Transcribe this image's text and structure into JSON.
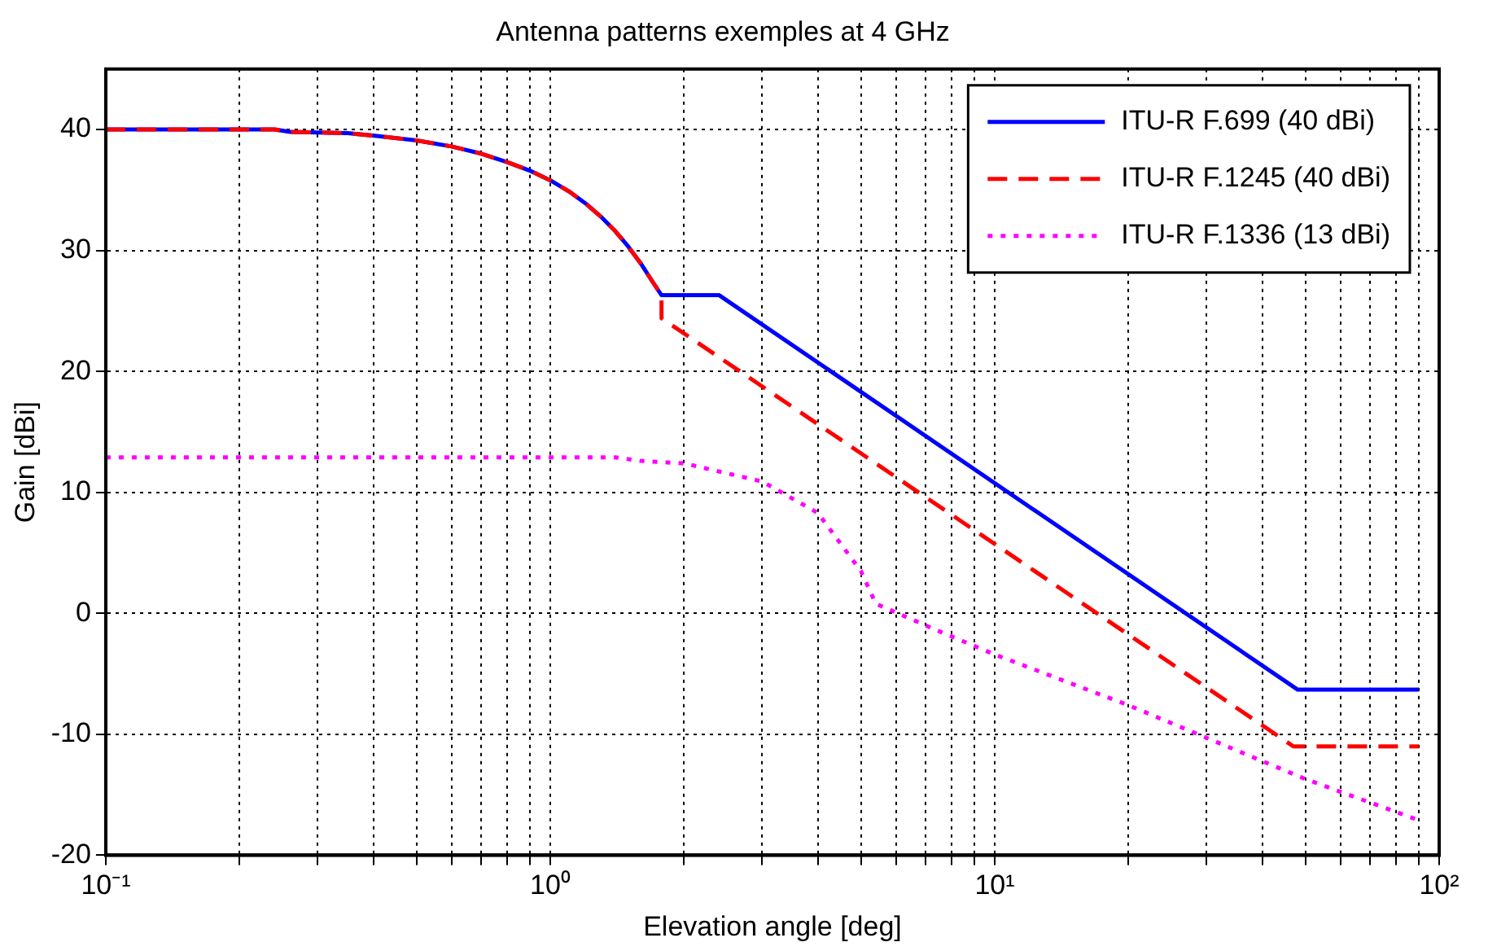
{
  "chart_data": {
    "type": "line",
    "title": "Antenna patterns exemples at 4 GHz",
    "xlabel": "Elevation angle [deg]",
    "ylabel": "Gain [dBi]",
    "log": "x",
    "grid": true,
    "legend": "top right",
    "marker": "none",
    "xlim": [
      0.1,
      100
    ],
    "ylim": [
      -20,
      45
    ],
    "xticks": [
      {
        "value": 0.1,
        "label": "10⁻¹"
      },
      {
        "value": 0.2,
        "label": null
      },
      {
        "value": 0.3,
        "label": null
      },
      {
        "value": 0.4,
        "label": null
      },
      {
        "value": 0.5,
        "label": null
      },
      {
        "value": 0.6,
        "label": null
      },
      {
        "value": 0.7,
        "label": null
      },
      {
        "value": 0.8,
        "label": null
      },
      {
        "value": 0.9,
        "label": null
      },
      {
        "value": 1,
        "label": "10⁰"
      },
      {
        "value": 2,
        "label": null
      },
      {
        "value": 3,
        "label": null
      },
      {
        "value": 4,
        "label": null
      },
      {
        "value": 5,
        "label": null
      },
      {
        "value": 6,
        "label": null
      },
      {
        "value": 7,
        "label": null
      },
      {
        "value": 8,
        "label": null
      },
      {
        "value": 9,
        "label": null
      },
      {
        "value": 10,
        "label": "10¹"
      },
      {
        "value": 20,
        "label": null
      },
      {
        "value": 30,
        "label": null
      },
      {
        "value": 40,
        "label": null
      },
      {
        "value": 50,
        "label": null
      },
      {
        "value": 60,
        "label": null
      },
      {
        "value": 70,
        "label": null
      },
      {
        "value": 80,
        "label": null
      },
      {
        "value": 90,
        "label": null
      },
      {
        "value": 100,
        "label": "10²"
      }
    ],
    "yticks": [
      -20,
      -10,
      0,
      10,
      20,
      30,
      40
    ],
    "series": [
      {
        "name": "ITU-R F.699 (40 dBi)",
        "color": "#0000ff",
        "line_style": "solid",
        "x": [
          0.1,
          0.24,
          0.26,
          0.35,
          0.4,
          0.5,
          0.6,
          0.7,
          0.8,
          0.9,
          1.0,
          1.1,
          1.2,
          1.3,
          1.4,
          1.5,
          1.6,
          1.7,
          1.78,
          2.4,
          48,
          90
        ],
        "values": [
          40,
          40,
          39.8,
          39.7,
          39.5,
          39.1,
          38.6,
          38,
          37.3,
          36.6,
          35.8,
          34.9,
          33.9,
          32.8,
          31.6,
          30.3,
          28.9,
          27.4,
          26.3,
          26.3,
          -6.3,
          -6.3
        ]
      },
      {
        "name": "ITU-R F.1245 (40 dBi)",
        "color": "#ff0000",
        "line_style": "dashed",
        "x": [
          0.1,
          0.24,
          0.26,
          0.35,
          0.4,
          0.5,
          0.6,
          0.7,
          0.8,
          0.9,
          1.0,
          1.1,
          1.2,
          1.3,
          1.4,
          1.5,
          1.6,
          1.7,
          1.78,
          1.78,
          47,
          90
        ],
        "values": [
          40,
          40,
          39.8,
          39.7,
          39.5,
          39.1,
          38.6,
          38,
          37.3,
          36.6,
          35.8,
          34.9,
          33.9,
          32.8,
          31.6,
          30.3,
          28.9,
          27.4,
          26.3,
          24.4,
          -11,
          -11
        ]
      },
      {
        "name": "ITU-R F.1336 (13 dBi)",
        "color": "#ff00ff",
        "line_style": "dotted",
        "x": [
          0.1,
          1.4,
          1.6,
          2,
          3,
          4,
          5,
          5.4,
          7.3,
          10,
          20,
          30,
          50,
          90
        ],
        "values": [
          12.9,
          12.9,
          12.6,
          12.4,
          10.9,
          8.3,
          3.5,
          0.8,
          -1.3,
          -3.4,
          -7.6,
          -10.3,
          -13.7,
          -17.1
        ]
      }
    ]
  }
}
